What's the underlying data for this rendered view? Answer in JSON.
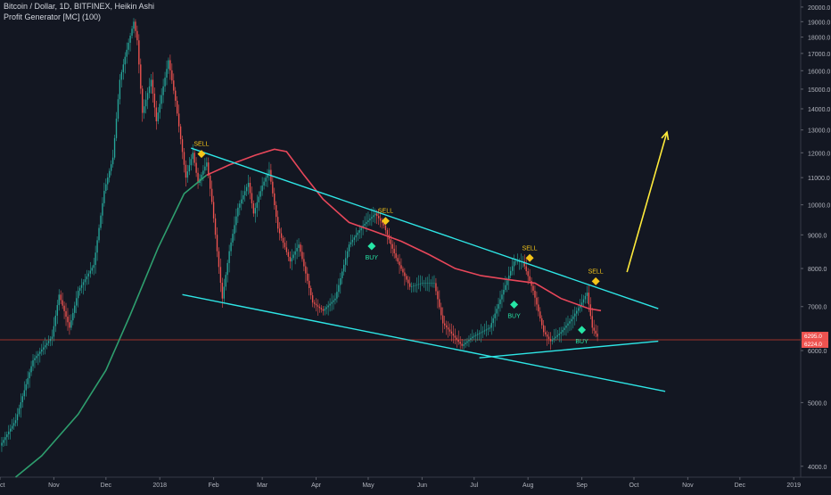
{
  "header": {
    "symbol_line": "Bitcoin / Dollar, 1D, BITFINEX, Heikin Ashi",
    "indicator_line": "Profit Generator [MC] (100)"
  },
  "colors": {
    "background": "#131722",
    "up_candle": "#26a69a",
    "down_candle": "#ef5350",
    "ma_line_early": "#2e9e6e",
    "ma_line_late": "#e8475a",
    "trendline": "#2ee6e6",
    "arrow": "#ffeb3b",
    "sell_marker": "#f5c518",
    "buy_marker": "#26e6a6",
    "price_line": "#c0392b",
    "axis_text": "#b2b5be"
  },
  "chart_data": {
    "type": "candlestick",
    "title": "Bitcoin / Dollar, 1D, BITFINEX, Heikin Ashi",
    "indicator": "Profit Generator [MC] (100)",
    "scale": "log",
    "ylim": [
      3850,
      20500
    ],
    "xlim": [
      "2017-10-01",
      "2019-01-05"
    ],
    "y_ticks": [
      20000,
      19000,
      18000,
      17000,
      16000,
      15000,
      14000,
      13000,
      12000,
      11000,
      10000,
      9000,
      8000,
      7000,
      6000,
      5000,
      4000
    ],
    "y_tick_labels": [
      "20000.0",
      "19000.0",
      "18000.0",
      "17000.0",
      "16000.0",
      "15000.0",
      "14000.0",
      "13000.0",
      "12000.0",
      "11000.0",
      "10000.0",
      "9000.0",
      "8000.0",
      "7000.0",
      "6000.0",
      "5000.0",
      "4000.0"
    ],
    "x_ticks": [
      {
        "date": "2017-10-01",
        "label": "Oct"
      },
      {
        "date": "2017-11-01",
        "label": "Nov"
      },
      {
        "date": "2017-12-01",
        "label": "Dec"
      },
      {
        "date": "2018-01-01",
        "label": "2018"
      },
      {
        "date": "2018-02-01",
        "label": "Feb"
      },
      {
        "date": "2018-03-01",
        "label": "Mar"
      },
      {
        "date": "2018-04-01",
        "label": "Apr"
      },
      {
        "date": "2018-05-01",
        "label": "May"
      },
      {
        "date": "2018-06-01",
        "label": "Jun"
      },
      {
        "date": "2018-07-01",
        "label": "Jul"
      },
      {
        "date": "2018-08-01",
        "label": "Aug"
      },
      {
        "date": "2018-09-01",
        "label": "Sep"
      },
      {
        "date": "2018-10-01",
        "label": "Oct"
      },
      {
        "date": "2018-11-01",
        "label": "Nov"
      },
      {
        "date": "2018-12-01",
        "label": "Dec"
      },
      {
        "date": "2019-01-01",
        "label": "2019"
      }
    ],
    "price_path": [
      [
        "2017-10-01",
        4300
      ],
      [
        "2017-10-10",
        4700
      ],
      [
        "2017-10-20",
        5800
      ],
      [
        "2017-10-31",
        6300
      ],
      [
        "2017-11-04",
        7300
      ],
      [
        "2017-11-10",
        6500
      ],
      [
        "2017-11-15",
        7400
      ],
      [
        "2017-11-24",
        8100
      ],
      [
        "2017-11-30",
        10500
      ],
      [
        "2017-12-05",
        11800
      ],
      [
        "2017-12-09",
        15500
      ],
      [
        "2017-12-12",
        16800
      ],
      [
        "2017-12-17",
        19000
      ],
      [
        "2017-12-19",
        17800
      ],
      [
        "2017-12-22",
        13800
      ],
      [
        "2017-12-27",
        15500
      ],
      [
        "2017-12-30",
        13400
      ],
      [
        "2018-01-06",
        16600
      ],
      [
        "2018-01-10",
        14400
      ],
      [
        "2018-01-16",
        11000
      ],
      [
        "2018-01-20",
        12000
      ],
      [
        "2018-01-23",
        10800
      ],
      [
        "2018-01-28",
        11600
      ],
      [
        "2018-01-31",
        10100
      ],
      [
        "2018-02-03",
        8500
      ],
      [
        "2018-02-06",
        7200
      ],
      [
        "2018-02-10",
        8500
      ],
      [
        "2018-02-15",
        9900
      ],
      [
        "2018-02-21",
        10800
      ],
      [
        "2018-02-24",
        9700
      ],
      [
        "2018-03-01",
        10700
      ],
      [
        "2018-03-05",
        11300
      ],
      [
        "2018-03-10",
        9200
      ],
      [
        "2018-03-17",
        8200
      ],
      [
        "2018-03-22",
        8700
      ],
      [
        "2018-03-30",
        7100
      ],
      [
        "2018-04-05",
        6900
      ],
      [
        "2018-04-12",
        7200
      ],
      [
        "2018-04-20",
        8700
      ],
      [
        "2018-04-28",
        9300
      ],
      [
        "2018-05-05",
        9700
      ],
      [
        "2018-05-10",
        9300
      ],
      [
        "2018-05-17",
        8300
      ],
      [
        "2018-05-25",
        7500
      ],
      [
        "2018-06-01",
        7600
      ],
      [
        "2018-06-08",
        7600
      ],
      [
        "2018-06-13",
        6600
      ],
      [
        "2018-06-24",
        6100
      ],
      [
        "2018-06-30",
        6300
      ],
      [
        "2018-07-10",
        6500
      ],
      [
        "2018-07-17",
        7300
      ],
      [
        "2018-07-24",
        8200
      ],
      [
        "2018-07-29",
        8200
      ],
      [
        "2018-08-04",
        7400
      ],
      [
        "2018-08-10",
        6400
      ],
      [
        "2018-08-14",
        6200
      ],
      [
        "2018-08-20",
        6400
      ],
      [
        "2018-08-26",
        6700
      ],
      [
        "2018-09-01",
        7100
      ],
      [
        "2018-09-04",
        7350
      ],
      [
        "2018-09-07",
        6500
      ],
      [
        "2018-09-10",
        6300
      ]
    ],
    "indicator_line": [
      [
        "2017-10-10",
        3850
      ],
      [
        "2017-10-25",
        4150
      ],
      [
        "2017-11-15",
        4800
      ],
      [
        "2017-12-01",
        5600
      ],
      [
        "2017-12-15",
        6800
      ],
      [
        "2017-12-31",
        8600
      ],
      [
        "2018-01-15",
        10400
      ],
      [
        "2018-01-28",
        11100
      ],
      [
        "2018-02-10",
        11500
      ],
      [
        "2018-02-25",
        11900
      ],
      [
        "2018-03-08",
        12150
      ],
      [
        "2018-03-15",
        12050
      ],
      [
        "2018-03-25",
        11100
      ],
      [
        "2018-04-05",
        10200
      ],
      [
        "2018-04-20",
        9400
      ],
      [
        "2018-05-05",
        9100
      ],
      [
        "2018-05-20",
        8800
      ],
      [
        "2018-06-05",
        8400
      ],
      [
        "2018-06-20",
        8000
      ],
      [
        "2018-07-05",
        7800
      ],
      [
        "2018-07-20",
        7700
      ],
      [
        "2018-08-05",
        7600
      ],
      [
        "2018-08-20",
        7200
      ],
      [
        "2018-09-05",
        6950
      ],
      [
        "2018-09-12",
        6900
      ]
    ],
    "indicator_color_change_date": "2018-01-28",
    "trendlines": [
      {
        "name": "upper",
        "from": [
          "2018-01-19",
          12200
        ],
        "to": [
          "2018-10-15",
          6950
        ]
      },
      {
        "name": "lower",
        "from": [
          "2018-01-14",
          7300
        ],
        "to": [
          "2018-10-19",
          5200
        ]
      },
      {
        "name": "inner-support",
        "from": [
          "2018-07-04",
          5850
        ],
        "to": [
          "2018-10-15",
          6200
        ]
      }
    ],
    "projection_arrow": {
      "from": [
        "2018-09-27",
        7900
      ],
      "to": [
        "2018-10-20",
        12900
      ]
    },
    "current_price_line": 6230,
    "price_labels": [
      "6295.0",
      "6224.0"
    ],
    "signals": [
      {
        "type": "SELL",
        "label": "SELL",
        "date": "2018-01-25",
        "price": 11950
      },
      {
        "type": "BUY",
        "label": "BUY",
        "date": "2018-05-03",
        "price": 8650
      },
      {
        "type": "SELL",
        "label": "SELL",
        "date": "2018-05-11",
        "price": 9450
      },
      {
        "type": "BUY",
        "label": "BUY",
        "date": "2018-07-24",
        "price": 7050
      },
      {
        "type": "SELL",
        "label": "SELL",
        "date": "2018-08-02",
        "price": 8300
      },
      {
        "type": "BUY",
        "label": "BUY",
        "date": "2018-09-01",
        "price": 6450
      },
      {
        "type": "SELL",
        "label": "SELL",
        "date": "2018-09-09",
        "price": 7650
      }
    ]
  }
}
